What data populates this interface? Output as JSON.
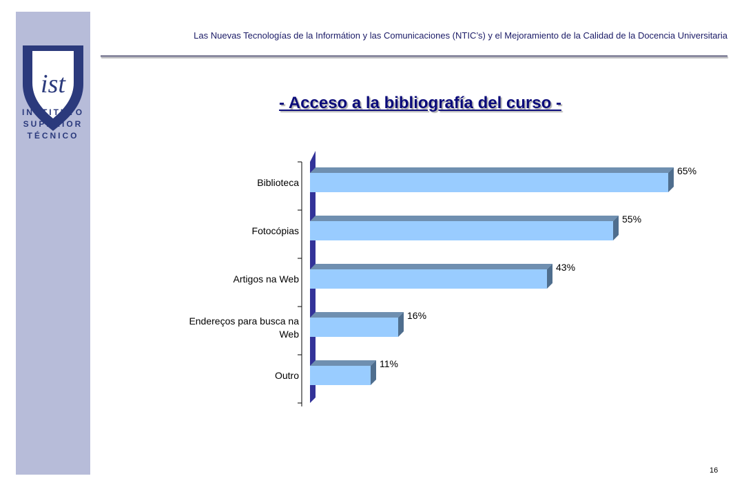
{
  "header": {
    "text": "Las Nuevas Tecnologías de la Informátion y las Comunicaciones (NTIC’s) y el Mejoramiento de la Calidad de la Docencia  Universitaria"
  },
  "logo": {
    "monogram": "IST",
    "lines": [
      "INSTITUTO",
      "SUPERIOR",
      "TÉCNICO"
    ],
    "color": "#2b3a7c"
  },
  "title": "- Acceso a la bibliografía del curso -",
  "page_number": "16",
  "colors": {
    "bar_front": "#99ccff",
    "bar_top": "#6f8fb0",
    "bar_side": "#4f6e8e",
    "axis_wall": "#333399",
    "sidebar": "#b7bcd9"
  },
  "chart_data": {
    "type": "bar",
    "orientation": "horizontal",
    "categories": [
      "Biblioteca",
      "Fotocópias",
      "Artigos na Web",
      "Endereços para busca na Web",
      "Outro"
    ],
    "category_lines": [
      [
        "Biblioteca"
      ],
      [
        "Fotocópias"
      ],
      [
        "Artigos na Web"
      ],
      [
        "Endereços para busca na",
        "Web"
      ],
      [
        "Outro"
      ]
    ],
    "values": [
      65,
      55,
      43,
      16,
      11
    ],
    "data_labels": [
      "65%",
      "55%",
      "43%",
      "16%",
      "11%"
    ],
    "xlim": [
      0,
      65
    ],
    "grid": false,
    "legend": "none"
  }
}
